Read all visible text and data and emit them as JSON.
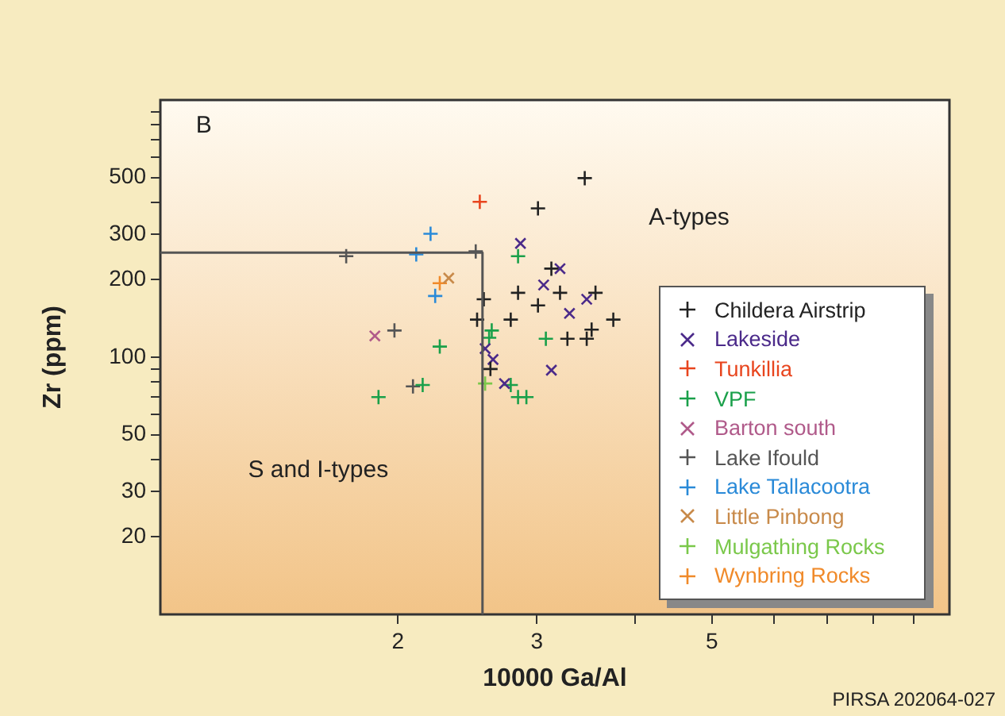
{
  "chart_data": {
    "type": "scatter",
    "xlabel": "10000 Ga/Al",
    "ylabel": "Zr (ppm)",
    "log": "xy",
    "grid": false,
    "legend": "right",
    "xlim": [
      1,
      10
    ],
    "ylim": [
      10,
      1000
    ],
    "xticks": [
      2,
      3,
      {
        "value": 4,
        "label": null
      },
      5,
      {
        "value": 6,
        "label": null
      },
      {
        "value": 7,
        "label": null
      },
      {
        "value": 8,
        "label": null
      },
      {
        "value": 9,
        "label": null
      }
    ],
    "yticks": [
      20,
      30,
      {
        "value": 40,
        "label": null
      },
      50,
      {
        "value": 60,
        "label": null
      },
      {
        "value": 70,
        "label": null
      },
      {
        "value": 80,
        "label": null
      },
      {
        "value": 90,
        "label": null
      },
      100,
      200,
      300,
      {
        "value": 400,
        "label": null
      },
      500,
      {
        "value": 600,
        "label": null
      },
      {
        "value": 700,
        "label": null
      },
      {
        "value": 800,
        "label": null
      },
      {
        "value": 900,
        "label": null
      }
    ],
    "annotations": [
      "B",
      "A-types",
      "S and I-types",
      "PIRSA 202064-027"
    ],
    "series": [
      {
        "type": "line",
        "color": "#555555",
        "marker": "none",
        "line_style": "solid",
        "x": [
          1,
          2.56,
          2.56
        ],
        "values": [
          255,
          255,
          10
        ]
      },
      {
        "name": "Childera Airstrip",
        "color": "#222222",
        "marker": "cross",
        "x": [
          3.45,
          3.01,
          3.13,
          2.84,
          3.21,
          3.56,
          3.01,
          2.57,
          2.52,
          2.78,
          3.75,
          3.52,
          3.28,
          3.47,
          2.62
        ],
        "values": [
          497,
          379,
          221,
          178,
          178,
          178,
          159,
          168,
          140,
          140,
          140,
          128,
          118,
          118,
          90
        ]
      },
      {
        "name": "Lakeside",
        "color": "#4b2a8a",
        "marker": "x",
        "x": [
          2.86,
          3.21,
          3.06,
          3.47,
          3.3,
          2.58,
          2.64,
          3.13,
          2.73
        ],
        "values": [
          277,
          221,
          191,
          168,
          148,
          108,
          98,
          89,
          79
        ]
      },
      {
        "name": "Tunkillia",
        "color": "#e8451e",
        "marker": "cross",
        "x": [
          2.54
        ],
        "values": [
          402
        ]
      },
      {
        "name": "VPF",
        "color": "#1aa04a",
        "marker": "cross",
        "x": [
          2.84,
          2.63,
          2.61,
          3.08,
          2.26,
          2.15,
          1.89,
          2.78,
          2.84,
          2.91
        ],
        "values": [
          247,
          127,
          119,
          118,
          110,
          78,
          70,
          78,
          70,
          70
        ]
      },
      {
        "name": "Barton south",
        "color": "#b05a8a",
        "marker": "x",
        "x": [
          1.87
        ],
        "values": [
          121
        ]
      },
      {
        "name": "Lake Ifould",
        "color": "#555555",
        "marker": "cross",
        "x": [
          1.72,
          2.51,
          1.98,
          2.09
        ],
        "values": [
          247,
          258,
          127,
          77
        ]
      },
      {
        "name": "Lake Tallacootra",
        "color": "#2a8ad8",
        "marker": "cross",
        "x": [
          2.2,
          2.11,
          2.23
        ],
        "values": [
          302,
          251,
          173
        ]
      },
      {
        "name": "Little Pinbong",
        "color": "#c88a4a",
        "marker": "x",
        "x": [
          2.32
        ],
        "values": [
          203
        ]
      },
      {
        "name": "Mulgathing Rocks",
        "color": "#7ac84a",
        "marker": "cross",
        "x": [
          2.58
        ],
        "values": [
          79
        ]
      },
      {
        "name": "Wynbring Rocks",
        "color": "#f08a2a",
        "marker": "cross",
        "x": [
          2.26
        ],
        "values": [
          194
        ]
      }
    ]
  }
}
